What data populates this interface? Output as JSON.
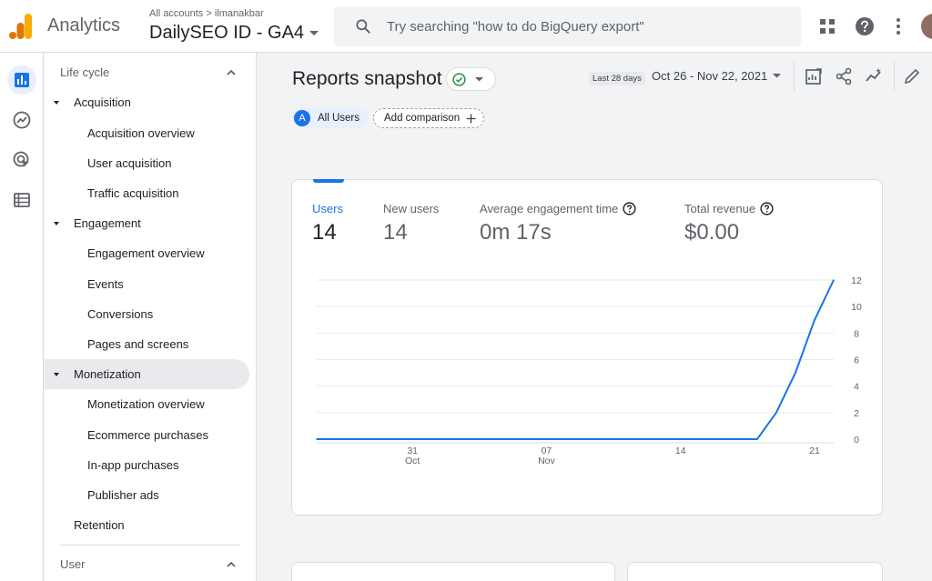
{
  "header": {
    "app_title": "Analytics",
    "account_crumb": "All accounts > ilmanakbar",
    "property_name": "DailySEO ID - GA4",
    "search_placeholder": "Try searching \"how to do BigQuery export\""
  },
  "nav": {
    "section_lifecycle": "Life cycle",
    "groups": {
      "acquisition": "Acquisition",
      "engagement": "Engagement",
      "monetization": "Monetization"
    },
    "items": {
      "acquisition_overview": "Acquisition overview",
      "user_acquisition": "User acquisition",
      "traffic_acquisition": "Traffic acquisition",
      "engagement_overview": "Engagement overview",
      "events": "Events",
      "conversions": "Conversions",
      "pages_and_screens": "Pages and screens",
      "monetization_overview": "Monetization overview",
      "ecommerce_purchases": "Ecommerce purchases",
      "in_app_purchases": "In-app purchases",
      "publisher_ads": "Publisher ads"
    },
    "retention": "Retention",
    "section_user": "User"
  },
  "main": {
    "title": "Reports snapshot",
    "date_hint": "Last 28 days",
    "date_range": "Oct 26 - Nov 22, 2021",
    "chip_users_letter": "A",
    "chip_users": "All Users",
    "chip_add_comparison": "Add comparison"
  },
  "metrics": [
    {
      "label": "Users",
      "value": "14"
    },
    {
      "label": "New users",
      "value": "14"
    },
    {
      "label": "Average engagement time",
      "value": "0m 17s"
    },
    {
      "label": "Total revenue",
      "value": "$0.00"
    }
  ],
  "colors": {
    "accent": "#1a73e8",
    "logo_orange": "#f9ab00",
    "logo_dark_orange": "#e37400"
  },
  "chart_data": {
    "type": "line",
    "series": [
      {
        "x": [
          "Oct 26",
          "Oct 27",
          "Oct 28",
          "Oct 29",
          "Oct 30",
          "Oct 31",
          "Nov 01",
          "Nov 02",
          "Nov 03",
          "Nov 04",
          "Nov 05",
          "Nov 06",
          "Nov 07",
          "Nov 08",
          "Nov 09",
          "Nov 10",
          "Nov 11",
          "Nov 12",
          "Nov 13",
          "Nov 14",
          "Nov 15",
          "Nov 16",
          "Nov 17",
          "Nov 18",
          "Nov 19",
          "Nov 20",
          "Nov 21",
          "Nov 22"
        ],
        "values": [
          0,
          0,
          0,
          0,
          0,
          0,
          0,
          0,
          0,
          0,
          0,
          0,
          0,
          0,
          0,
          0,
          0,
          0,
          0,
          0,
          0,
          0,
          0,
          0,
          2,
          5,
          9,
          12
        ]
      }
    ],
    "x_ticks": [
      {
        "day": "31",
        "month": "Oct",
        "index": 5
      },
      {
        "day": "07",
        "month": "Nov",
        "index": 12
      },
      {
        "day": "14",
        "month": "",
        "index": 19
      },
      {
        "day": "21",
        "month": "",
        "index": 26
      }
    ],
    "y_ticks": [
      "0",
      "2",
      "4",
      "6",
      "8",
      "10",
      "12"
    ],
    "ylim": [
      0,
      12
    ],
    "grid": true,
    "y_axis_side": "right"
  }
}
